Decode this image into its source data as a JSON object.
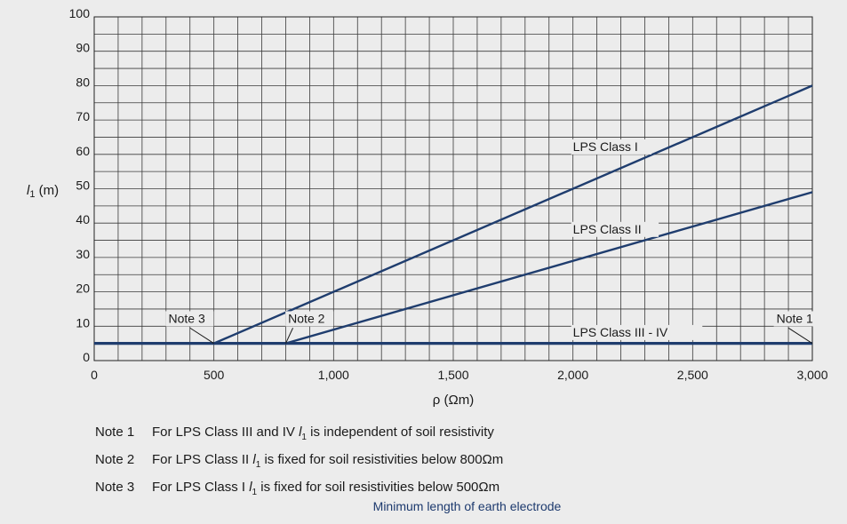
{
  "chart_data": {
    "type": "line",
    "title": "Minimum length of earth electrode",
    "xlabel": "ρ (Ωm)",
    "ylabel_prefix": "l",
    "ylabel_sub": "1",
    "ylabel_suffix": " (m)",
    "xlim": [
      0,
      3000
    ],
    "ylim": [
      0,
      100
    ],
    "x_minor_step": 100,
    "y_minor_step": 5,
    "x_ticks": [
      {
        "value": 0,
        "label": "0"
      },
      {
        "value": 500,
        "label": "500"
      },
      {
        "value": 1000,
        "label": "1,000"
      },
      {
        "value": 1500,
        "label": "1,500"
      },
      {
        "value": 2000,
        "label": "2,000"
      },
      {
        "value": 2500,
        "label": "2,500"
      },
      {
        "value": 3000,
        "label": "3,000"
      }
    ],
    "y_ticks": [
      {
        "value": 0,
        "label": "0"
      },
      {
        "value": 10,
        "label": "10"
      },
      {
        "value": 20,
        "label": "20"
      },
      {
        "value": 30,
        "label": "30"
      },
      {
        "value": 40,
        "label": "40"
      },
      {
        "value": 50,
        "label": "50"
      },
      {
        "value": 60,
        "label": "60"
      },
      {
        "value": 70,
        "label": "70"
      },
      {
        "value": 80,
        "label": "80"
      },
      {
        "value": 90,
        "label": "90"
      },
      {
        "value": 100,
        "label": "100"
      }
    ],
    "series": [
      {
        "name": "LPS Class I",
        "x": [
          500,
          3000
        ],
        "y": [
          5,
          80
        ],
        "label_at": [
          2000,
          61
        ]
      },
      {
        "name": "LPS Class II",
        "x": [
          800,
          3000
        ],
        "y": [
          5,
          49
        ],
        "label_at": [
          2000,
          37
        ]
      },
      {
        "name": "LPS Class III - IV",
        "x": [
          0,
          3000
        ],
        "y": [
          5,
          5
        ],
        "label_at": [
          2000,
          7
        ]
      }
    ],
    "annotations": [
      {
        "text": "Note 3",
        "label_at": [
          310,
          11
        ],
        "line_from": [
          400,
          9.5
        ],
        "line_to": [
          500,
          5
        ]
      },
      {
        "text": "Note 2",
        "label_at": [
          810,
          11
        ],
        "line_from": [
          830,
          9.5
        ],
        "line_to": [
          800,
          5
        ]
      },
      {
        "text": "Note 1",
        "label_at": [
          2850,
          11
        ],
        "line_from": [
          2900,
          9.5
        ],
        "line_to": [
          3000,
          5
        ]
      }
    ],
    "line_color": "#1f3d6e"
  },
  "notes": [
    {
      "key": "Note 1",
      "text_a": "For LPS Class III and IV ",
      "var": "l",
      "sub": "1",
      "text_b": " is independent of soil resistivity"
    },
    {
      "key": "Note 2",
      "text_a": "For LPS Class II ",
      "var": "l",
      "sub": "1",
      "text_b": " is fixed for soil resistivities below 800Ωm"
    },
    {
      "key": "Note 3",
      "text_a": "For LPS Class I ",
      "var": "l",
      "sub": "1",
      "text_b": " is fixed for soil resistivities below 500Ωm"
    }
  ],
  "caption": "Minimum length of earth electrode"
}
